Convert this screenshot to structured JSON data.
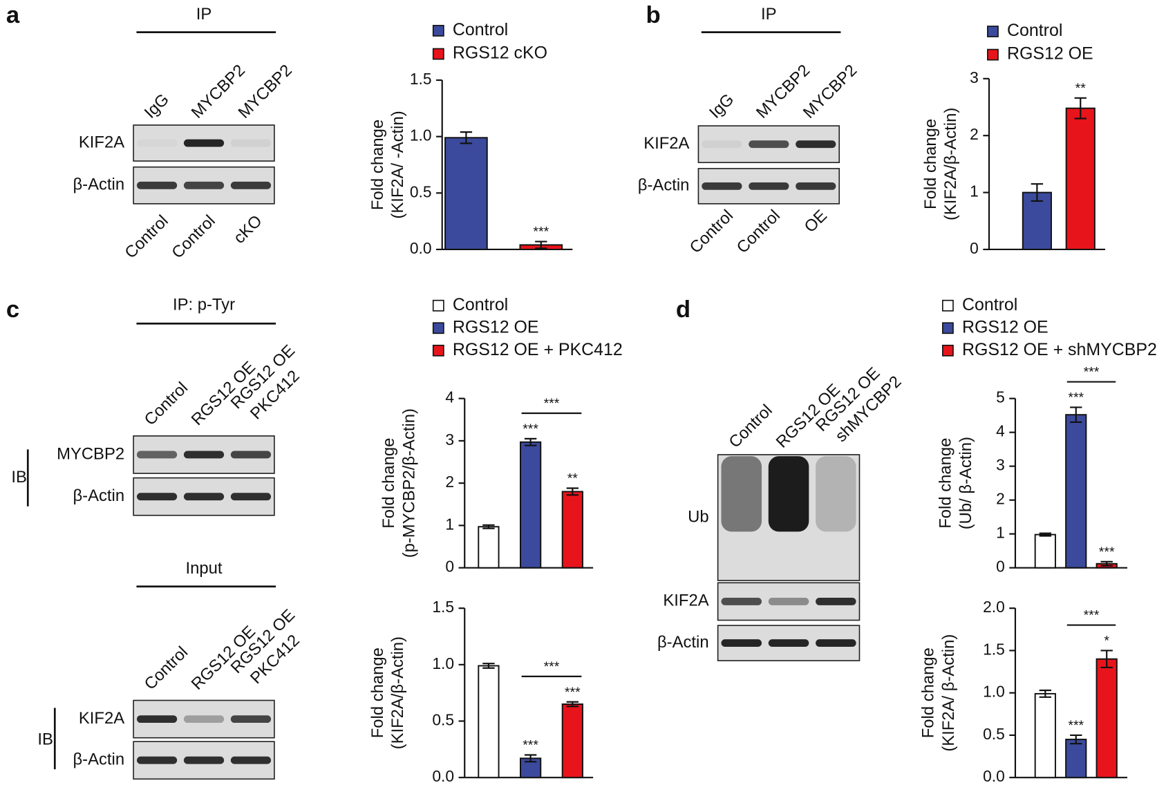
{
  "panels": [
    {
      "label": "a",
      "blots": [
        {
          "header": "IP",
          "lanes_top": [
            "IgG",
            "MYCBP2",
            "MYCBP2"
          ],
          "rows": [
            "KIF2A",
            "β-Actin"
          ],
          "lanes_bottom": [
            "Control",
            "Control",
            "cKO"
          ]
        }
      ]
    },
    {
      "label": "b",
      "blots": [
        {
          "header": "IP",
          "lanes_top": [
            "IgG",
            "MYCBP2",
            "MYCBP2"
          ],
          "rows": [
            "KIF2A",
            "β-Actin"
          ],
          "lanes_bottom": [
            "Control",
            "Control",
            "OE"
          ]
        }
      ]
    },
    {
      "label": "c",
      "blots": [
        {
          "header": "IP: p-Tyr",
          "group": "IB",
          "lanes_top": [
            "Control",
            "RGS12 OE",
            [
              "RGS12 OE",
              "PKC412"
            ]
          ],
          "rows": [
            "MYCBP2",
            "β-Actin"
          ]
        },
        {
          "header": "Input",
          "group": "IB",
          "lanes_top": [
            "Control",
            "RGS12 OE",
            [
              "RGS12 OE",
              "PKC412"
            ]
          ],
          "rows": [
            "KIF2A",
            "β-Actin"
          ]
        }
      ]
    },
    {
      "label": "d",
      "blots": [
        {
          "lanes_top": [
            "Control",
            "RGS12 OE",
            [
              "RGS12 OE",
              "shMYCBP2"
            ]
          ],
          "rows": [
            "Ub",
            "KIF2A",
            "β-Actin"
          ]
        }
      ]
    }
  ],
  "chart_data": [
    {
      "type": "bar",
      "ylabel": [
        "Fold change",
        "(KIF2A/  -Actin)"
      ],
      "ylim": [
        0,
        1.5
      ],
      "yticks": [
        {
          "value": 0,
          "label": "0.0"
        },
        0.5,
        {
          "value": 1,
          "label": "1.0"
        },
        1.5
      ],
      "series": [
        {
          "name": "Control",
          "color": "#3b4a9c",
          "values": [
            0.99
          ],
          "errors": [
            0.05
          ]
        },
        {
          "name": "RGS12 cKO",
          "color": "#e8141b",
          "values": [
            0.04
          ],
          "errors": [
            0.03
          ],
          "annotation": "***"
        }
      ]
    },
    {
      "type": "bar",
      "ylabel": [
        "Fold change",
        "(KIF2A/β-Actin)"
      ],
      "ylim": [
        0,
        3
      ],
      "yticks": [
        0,
        1,
        2,
        3
      ],
      "series": [
        {
          "name": "Control",
          "color": "#3b4a9c",
          "values": [
            1.0
          ],
          "errors": [
            0.15
          ]
        },
        {
          "name": "RGS12 OE",
          "color": "#e8141b",
          "values": [
            2.48
          ],
          "errors": [
            0.18
          ],
          "annotation": "**"
        }
      ]
    },
    {
      "type": "bar",
      "ylabel": [
        "Fold change",
        "(p-MYCBP2/β-Actin)"
      ],
      "ylim": [
        0,
        4
      ],
      "yticks": [
        0,
        1,
        2,
        3,
        4
      ],
      "comparison": "***",
      "series": [
        {
          "name": "Control",
          "color": "#ffffff",
          "values": [
            0.97
          ],
          "errors": [
            0.04
          ]
        },
        {
          "name": "RGS12 OE",
          "color": "#3b4a9c",
          "values": [
            2.97
          ],
          "errors": [
            0.08
          ],
          "annotation": "***"
        },
        {
          "name": "RGS12 OE + PKC412",
          "color": "#e8141b",
          "values": [
            1.8
          ],
          "errors": [
            0.08
          ],
          "annotation": "**"
        }
      ]
    },
    {
      "type": "bar",
      "ylabel": [
        "Fold change",
        "(KIF2A/β-Actin)"
      ],
      "ylim": [
        0,
        1.5
      ],
      "yticks": [
        {
          "value": 0,
          "label": "0.0"
        },
        0.5,
        {
          "value": 1,
          "label": "1.0"
        },
        1.5
      ],
      "comparison": "***",
      "series": [
        {
          "color": "#ffffff",
          "values": [
            0.99
          ],
          "errors": [
            0.02
          ]
        },
        {
          "color": "#3b4a9c",
          "values": [
            0.17
          ],
          "errors": [
            0.03
          ],
          "annotation": "***"
        },
        {
          "color": "#e8141b",
          "values": [
            0.65
          ],
          "errors": [
            0.02
          ],
          "annotation": "***"
        }
      ]
    },
    {
      "type": "bar",
      "ylabel": [
        "Fold change",
        "(Ub/ β-Actin)"
      ],
      "ylim": [
        0,
        5
      ],
      "yticks": [
        0,
        1,
        2,
        3,
        4,
        5
      ],
      "comparison": "***",
      "series": [
        {
          "name": "Control",
          "color": "#ffffff",
          "values": [
            0.98
          ],
          "errors": [
            0.04
          ]
        },
        {
          "name": "RGS12 OE",
          "color": "#3b4a9c",
          "values": [
            4.52
          ],
          "errors": [
            0.22
          ],
          "annotation": "***"
        },
        {
          "name": "RGS12 OE + shMYCBP2",
          "color": "#e8141b",
          "values": [
            0.12
          ],
          "errors": [
            0.06
          ],
          "annotation": "***"
        }
      ]
    },
    {
      "type": "bar",
      "ylabel": [
        "Fold change",
        "(KIF2A/ β-Actin)"
      ],
      "ylim": [
        0,
        2
      ],
      "yticks": [
        {
          "value": 0,
          "label": "0.0"
        },
        0.5,
        {
          "value": 1,
          "label": "1.0"
        },
        1.5,
        {
          "value": 2,
          "label": "2.0"
        }
      ],
      "comparison": "***",
      "series": [
        {
          "color": "#ffffff",
          "values": [
            0.99
          ],
          "errors": [
            0.04
          ]
        },
        {
          "color": "#3b4a9c",
          "values": [
            0.45
          ],
          "errors": [
            0.05
          ],
          "annotation": "***"
        },
        {
          "color": "#e8141b",
          "values": [
            1.4
          ],
          "errors": [
            0.1
          ],
          "annotation": "*"
        }
      ]
    }
  ]
}
